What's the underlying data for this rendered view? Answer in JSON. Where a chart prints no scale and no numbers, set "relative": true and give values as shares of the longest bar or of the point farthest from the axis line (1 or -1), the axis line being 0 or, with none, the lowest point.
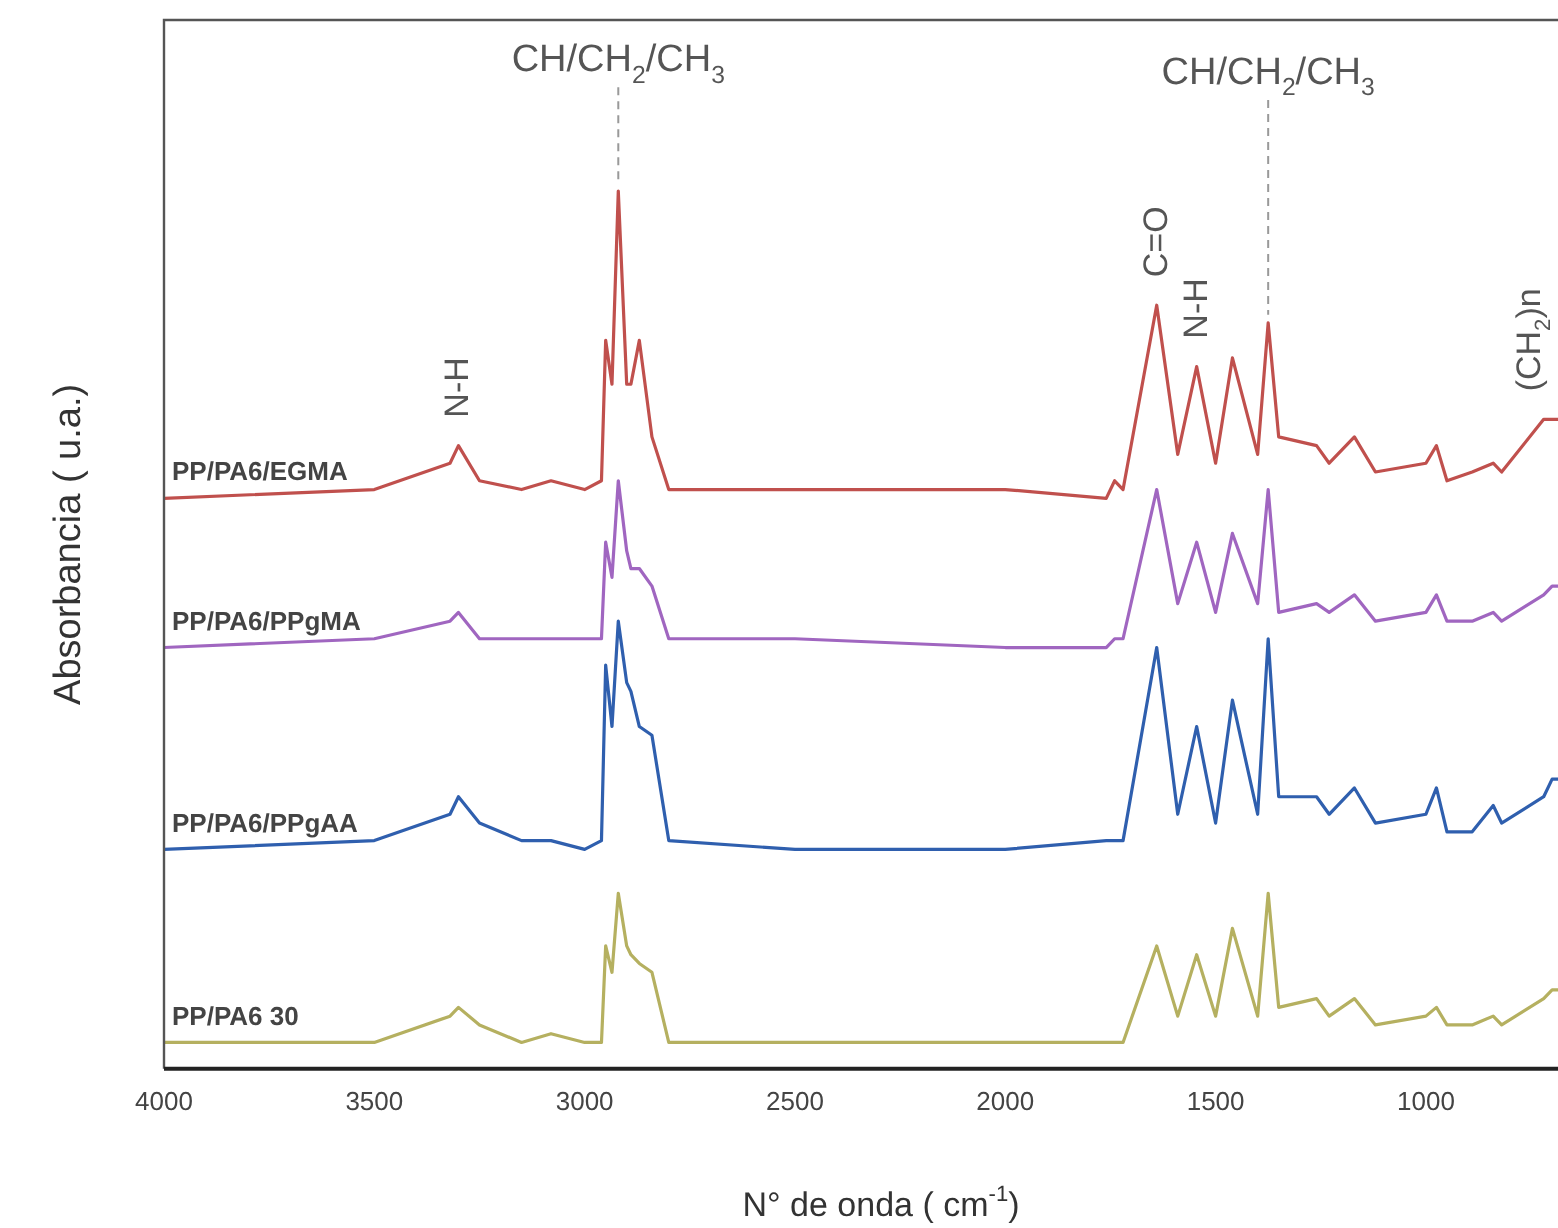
{
  "chart_data": {
    "type": "line",
    "relative": true,
    "xlabel": "N° de onda ( cm$^{-1}$)",
    "ylabel": "Absorbancia ( u.a.)",
    "x": [
      4000,
      3500,
      3320,
      3300,
      3250,
      3150,
      3080,
      3000,
      2960,
      2950,
      2935,
      2920,
      2900,
      2890,
      2870,
      2840,
      2800,
      2500,
      2000,
      1760,
      1740,
      1720,
      1640,
      1590,
      1545,
      1500,
      1460,
      1400,
      1375,
      1350,
      1260,
      1230,
      1170,
      1120,
      1000,
      975,
      950,
      890,
      840,
      820,
      720,
      700,
      686
    ],
    "xlim": [
      4000,
      686
    ],
    "xticks": [
      4000,
      3500,
      3000,
      2500,
      2000,
      1500,
      1000
    ],
    "tick_labels": "x",
    "grid": false,
    "legend": false,
    "marker": "none",
    "line_style": "solid",
    "series": [
      {
        "name": "PP/PA6/EGMA",
        "color": "#c0504d",
        "values": [
          0.65,
          0.66,
          0.69,
          0.71,
          0.67,
          0.66,
          0.67,
          0.66,
          0.67,
          0.83,
          0.78,
          1,
          0.78,
          0.78,
          0.83,
          0.72,
          0.66,
          0.66,
          0.66,
          0.65,
          0.67,
          0.66,
          0.87,
          0.7,
          0.8,
          0.69,
          0.81,
          0.7,
          0.85,
          0.72,
          0.71,
          0.69,
          0.72,
          0.68,
          0.69,
          0.71,
          0.67,
          0.68,
          0.69,
          0.68,
          0.74,
          0.74,
          0.74
        ]
      },
      {
        "name": "PP/PA6/PPgMA",
        "color": "#a066c0",
        "values": [
          0.48,
          0.49,
          0.51,
          0.52,
          0.49,
          0.49,
          0.49,
          0.49,
          0.49,
          0.6,
          0.56,
          0.67,
          0.59,
          0.57,
          0.57,
          0.55,
          0.49,
          0.49,
          0.48,
          0.48,
          0.49,
          0.49,
          0.66,
          0.53,
          0.6,
          0.52,
          0.61,
          0.53,
          0.66,
          0.52,
          0.53,
          0.52,
          0.54,
          0.51,
          0.52,
          0.54,
          0.51,
          0.51,
          0.52,
          0.51,
          0.54,
          0.55,
          0.55
        ]
      },
      {
        "name": "PP/PA6/PPgAA",
        "color": "#2f5fae",
        "values": [
          0.25,
          0.26,
          0.29,
          0.31,
          0.28,
          0.26,
          0.26,
          0.25,
          0.26,
          0.46,
          0.39,
          0.51,
          0.44,
          0.43,
          0.39,
          0.38,
          0.26,
          0.25,
          0.25,
          0.26,
          0.26,
          0.26,
          0.48,
          0.29,
          0.39,
          0.28,
          0.42,
          0.29,
          0.49,
          0.31,
          0.31,
          0.29,
          0.32,
          0.28,
          0.29,
          0.32,
          0.27,
          0.27,
          0.3,
          0.28,
          0.31,
          0.33,
          0.33
        ]
      },
      {
        "name": "PP/PA6 30",
        "color": "#b5b060",
        "values": [
          0.03,
          0.03,
          0.06,
          0.07,
          0.05,
          0.03,
          0.04,
          0.03,
          0.03,
          0.14,
          0.11,
          0.2,
          0.14,
          0.13,
          0.12,
          0.11,
          0.03,
          0.03,
          0.03,
          0.03,
          0.03,
          0.03,
          0.14,
          0.06,
          0.13,
          0.06,
          0.16,
          0.06,
          0.2,
          0.07,
          0.08,
          0.06,
          0.08,
          0.05,
          0.06,
          0.07,
          0.05,
          0.05,
          0.06,
          0.05,
          0.08,
          0.09,
          0.09
        ]
      }
    ],
    "annotations": [
      {
        "text": "N-H",
        "x": 3300,
        "y": 0.71
      },
      {
        "text": "CH/CH$_{2}$/CH$_{3}$",
        "x": 2920,
        "y": 1
      },
      {
        "text": "C=O",
        "x": 1640,
        "y": 0.87
      },
      {
        "text": "N-H",
        "x": 1545,
        "y": 0.8
      },
      {
        "text": "CH/CH$_{2}$/CH$_{3}$",
        "x": 1375,
        "y": 0.85
      },
      {
        "text": "(CH$_{2}$)n",
        "x": 720,
        "y": 0.74
      }
    ]
  }
}
